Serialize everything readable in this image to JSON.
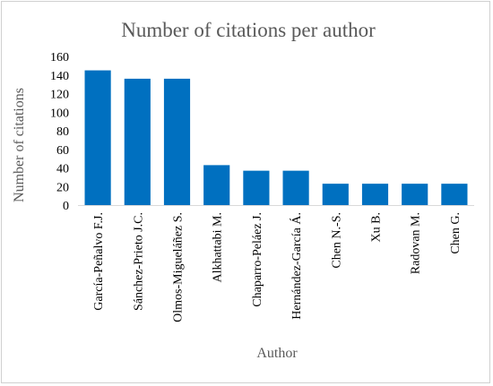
{
  "chart_data": {
    "type": "bar",
    "title": "Number of citations per author",
    "xlabel": "Author",
    "ylabel": "Number of citations",
    "categories": [
      "García-Peñalvo F.J.",
      "Sánchez-Prieto J.C.",
      "Olmos-Migueláñez S.",
      "Alkhattabi M.",
      "Chaparro-Peláez J.",
      "Hernández-García Á.",
      "Chen N.-S.",
      "Xu B.",
      "Radovan M.",
      "Chen G."
    ],
    "values": [
      145,
      136,
      136,
      43,
      37,
      37,
      23,
      23,
      23,
      23
    ],
    "yticks": [
      0,
      20,
      40,
      60,
      80,
      100,
      120,
      140,
      160
    ],
    "ylim": [
      0,
      160
    ],
    "grid": false,
    "legend": "none",
    "bar_color": "#0070C0"
  }
}
